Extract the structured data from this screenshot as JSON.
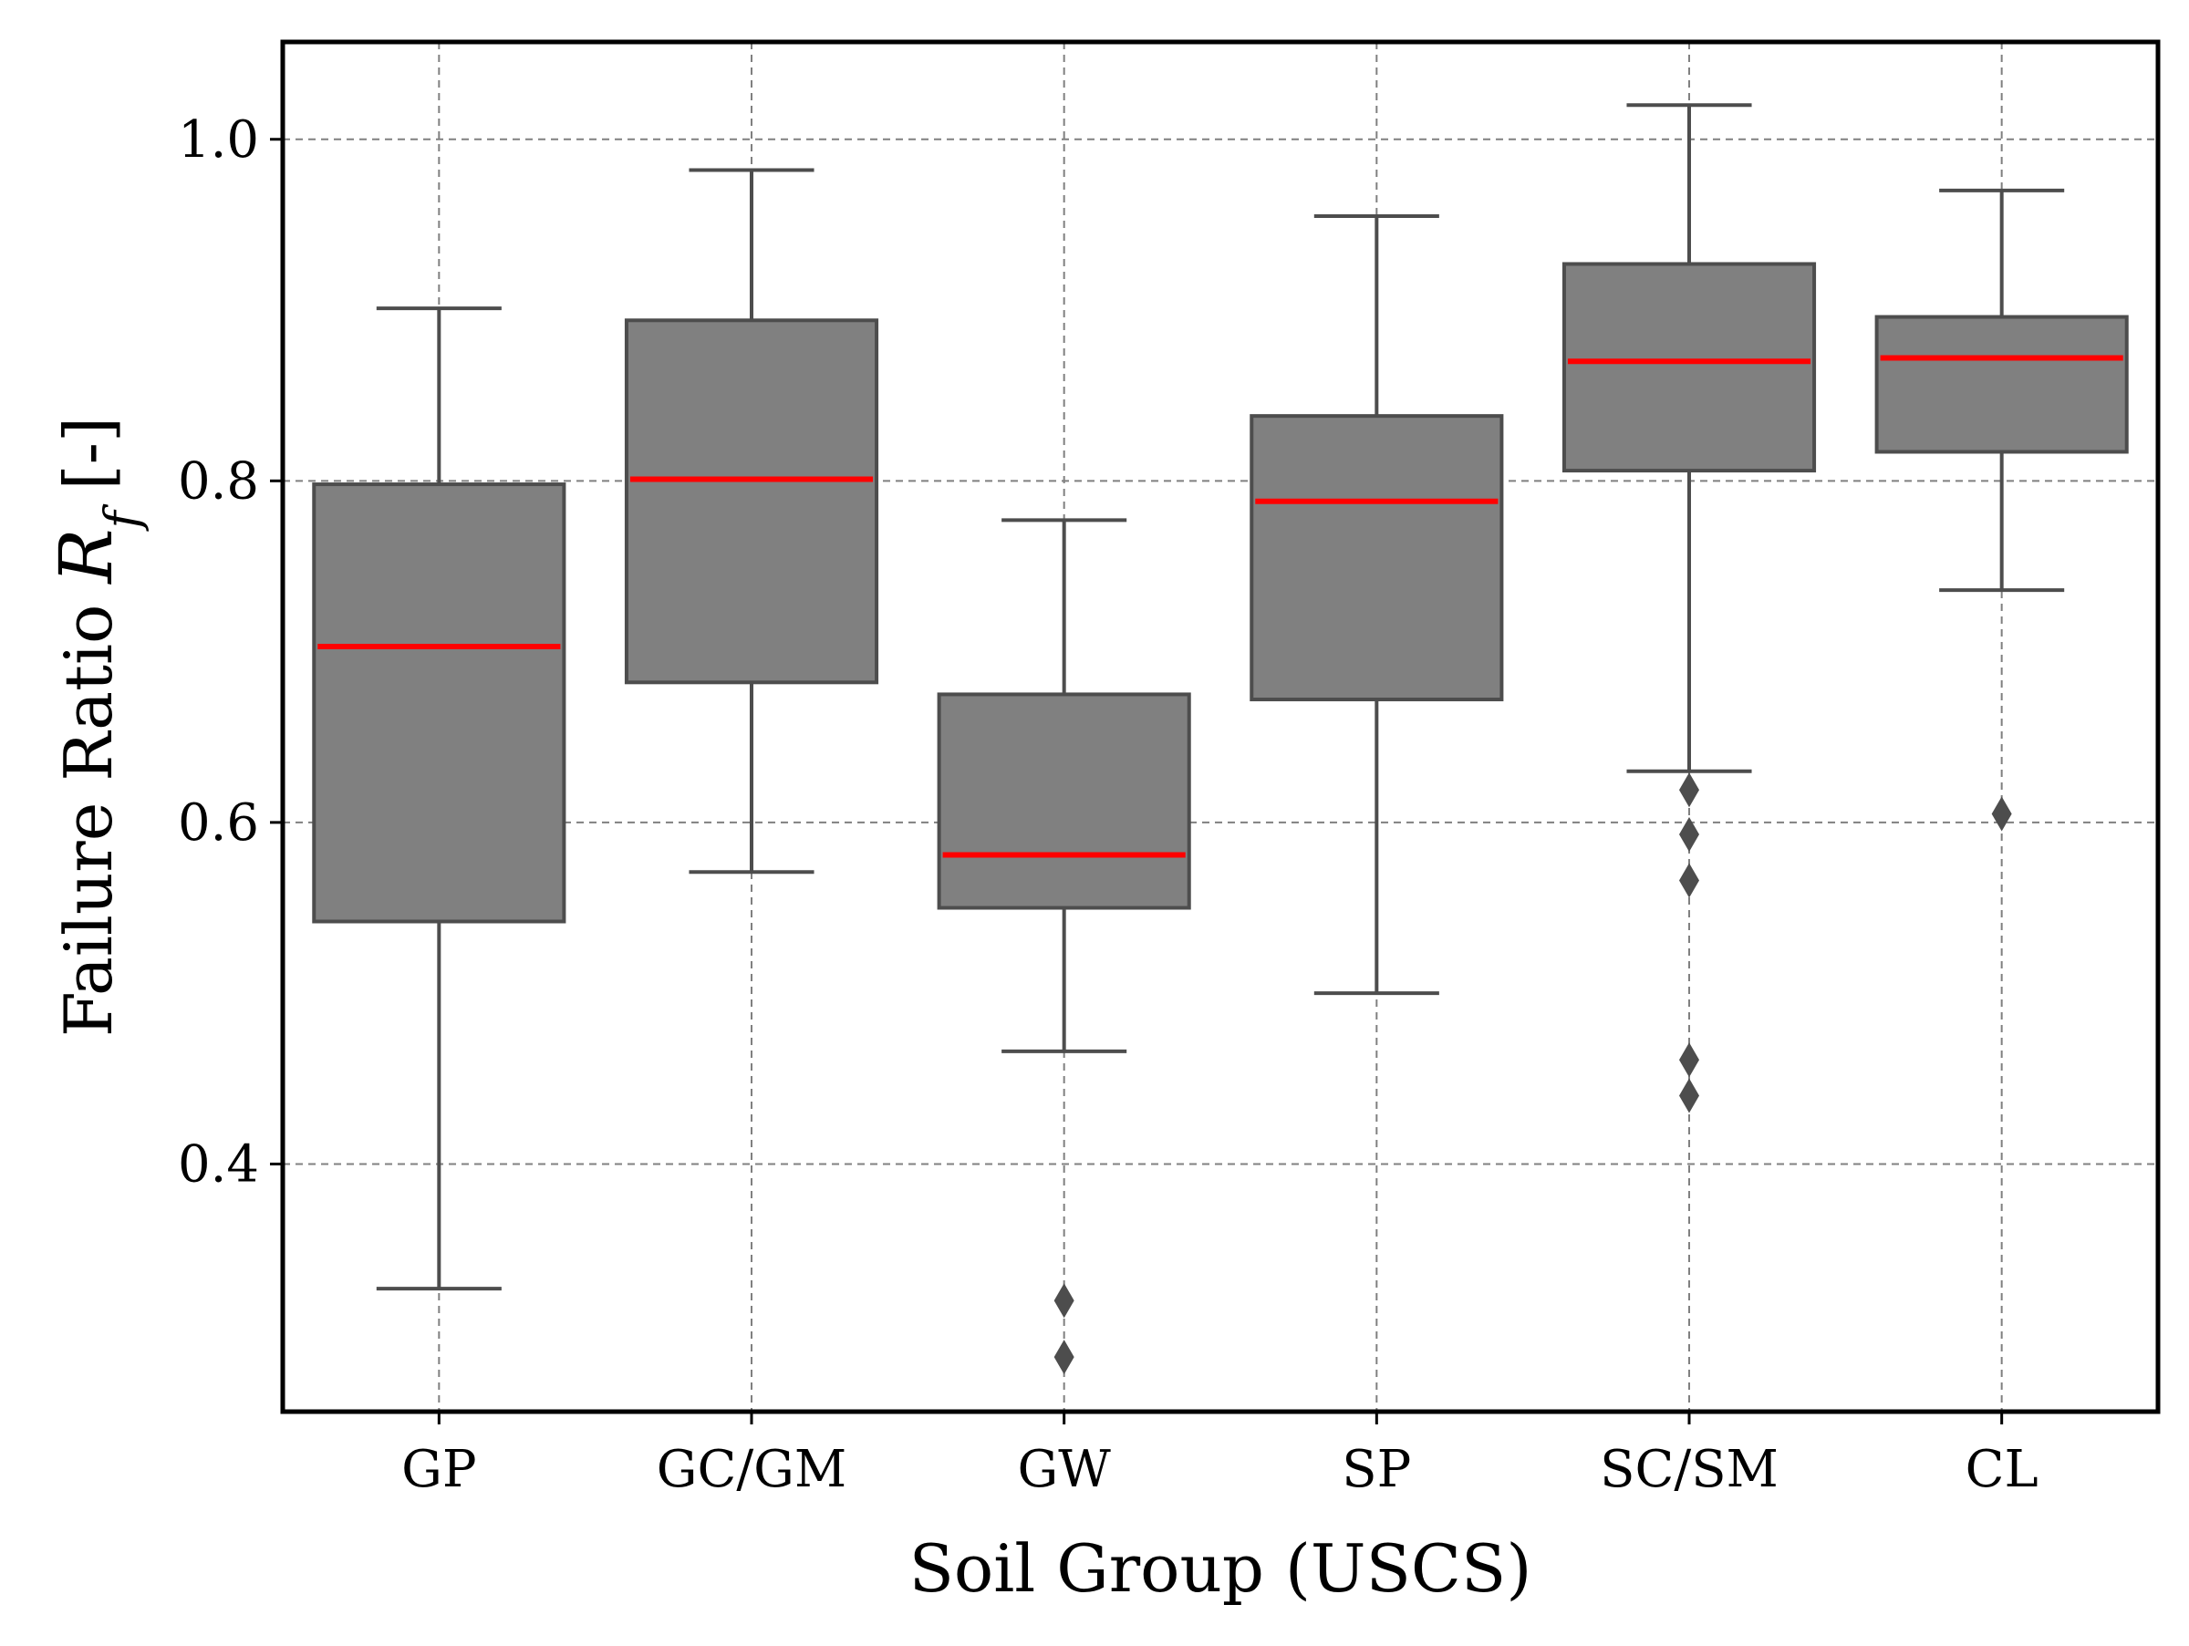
{
  "chart_data": {
    "type": "box",
    "title": "",
    "xlabel": "Soil Group (USCS)",
    "ylabel_prefix": "Failure Ratio ",
    "ylabel_symbol": "R",
    "ylabel_subscript": "f",
    "ylabel_suffix": " [-]",
    "ylim": [
      0.255,
      1.057
    ],
    "yticks": [
      0.4,
      0.6,
      0.8,
      1.0
    ],
    "ytick_labels": [
      "0.4",
      "0.6",
      "0.8",
      "1.0"
    ],
    "grid": true,
    "colors": {
      "box_fill": "#808080",
      "box_edge": "#4d4d4d",
      "median": "#ff0000",
      "grid": "#808080",
      "frame": "#000000"
    },
    "categories": [
      "GP",
      "GC/GM",
      "GW",
      "SP",
      "SC/SM",
      "CL"
    ],
    "boxes": [
      {
        "category": "GP",
        "whisker_low": 0.327,
        "q1": 0.542,
        "median": 0.703,
        "q3": 0.798,
        "whisker_high": 0.901,
        "outliers": []
      },
      {
        "category": "GC/GM",
        "whisker_low": 0.571,
        "q1": 0.682,
        "median": 0.801,
        "q3": 0.894,
        "whisker_high": 0.982,
        "outliers": []
      },
      {
        "category": "GW",
        "whisker_low": 0.466,
        "q1": 0.55,
        "median": 0.581,
        "q3": 0.675,
        "whisker_high": 0.777,
        "outliers": [
          0.32,
          0.287
        ]
      },
      {
        "category": "SP",
        "whisker_low": 0.5,
        "q1": 0.672,
        "median": 0.788,
        "q3": 0.838,
        "whisker_high": 0.955,
        "outliers": []
      },
      {
        "category": "SC/SM",
        "whisker_low": 0.63,
        "q1": 0.806,
        "median": 0.87,
        "q3": 0.927,
        "whisker_high": 1.02,
        "outliers": [
          0.619,
          0.593,
          0.566,
          0.461,
          0.44
        ]
      },
      {
        "category": "CL",
        "whisker_low": 0.736,
        "q1": 0.817,
        "median": 0.872,
        "q3": 0.896,
        "whisker_high": 0.97,
        "outliers": [
          0.605
        ]
      }
    ]
  }
}
